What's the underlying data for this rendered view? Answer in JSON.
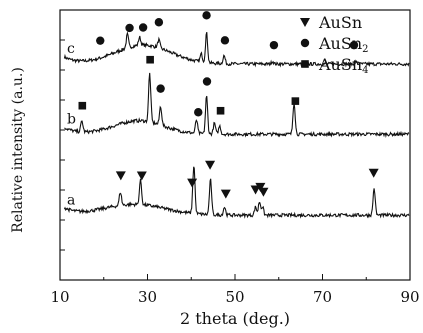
{
  "chart_data": {
    "type": "line",
    "xlabel": "2 theta (deg.)",
    "ylabel": "Relative intensity (a.u.)",
    "xlim": [
      10,
      90
    ],
    "x_ticks": [
      10,
      30,
      50,
      70,
      90
    ],
    "grid": false,
    "legend_position": "top-right",
    "legend": [
      {
        "label": "AuSn",
        "marker": "triangle-down"
      },
      {
        "label": "AuSn2",
        "marker": "circle"
      },
      {
        "label": "AuSn4",
        "marker": "square"
      }
    ],
    "series": [
      {
        "name": "c",
        "base": 0.8,
        "hump": {
          "center": 29,
          "width": 9,
          "height": 0.07
        },
        "peaks": [
          {
            "x": 25.4,
            "h": 0.05
          },
          {
            "x": 28.2,
            "h": 0.03
          },
          {
            "x": 32.6,
            "h": 0.03
          },
          {
            "x": 42.3,
            "h": 0.03
          },
          {
            "x": 43.5,
            "h": 0.11
          },
          {
            "x": 47.5,
            "h": 0.03
          },
          {
            "x": 58.6,
            "h": 0.01
          },
          {
            "x": 77.5,
            "h": 0.01
          }
        ],
        "markers": [
          {
            "x": 19.2,
            "type": "circle"
          },
          {
            "x": 25.9,
            "type": "circle"
          },
          {
            "x": 29.0,
            "type": "circle"
          },
          {
            "x": 32.6,
            "type": "circle"
          },
          {
            "x": 43.5,
            "type": "circle"
          },
          {
            "x": 47.7,
            "type": "circle"
          },
          {
            "x": 58.9,
            "type": "circle"
          },
          {
            "x": 77.2,
            "type": "circle"
          }
        ]
      },
      {
        "name": "b",
        "base": 0.54,
        "hump": {
          "center": 28,
          "width": 8,
          "height": 0.05
        },
        "peaks": [
          {
            "x": 15.0,
            "h": 0.04
          },
          {
            "x": 30.5,
            "h": 0.18
          },
          {
            "x": 33.0,
            "h": 0.07
          },
          {
            "x": 41.2,
            "h": 0.05
          },
          {
            "x": 43.5,
            "h": 0.14
          },
          {
            "x": 45.3,
            "h": 0.04
          },
          {
            "x": 46.5,
            "h": 0.03
          },
          {
            "x": 63.5,
            "h": 0.12
          }
        ],
        "markers": [
          {
            "x": 15.1,
            "type": "square"
          },
          {
            "x": 30.6,
            "type": "square"
          },
          {
            "x": 33.0,
            "type": "circle"
          },
          {
            "x": 41.6,
            "type": "circle"
          },
          {
            "x": 43.6,
            "type": "circle"
          },
          {
            "x": 46.7,
            "type": "square"
          },
          {
            "x": 63.8,
            "type": "square"
          }
        ]
      },
      {
        "name": "a",
        "base": 0.24,
        "hump": {
          "center": 27,
          "width": 10,
          "height": 0.04
        },
        "peaks": [
          {
            "x": 23.8,
            "h": 0.05
          },
          {
            "x": 28.4,
            "h": 0.09
          },
          {
            "x": 40.6,
            "h": 0.18
          },
          {
            "x": 44.4,
            "h": 0.13
          },
          {
            "x": 47.6,
            "h": 0.03
          },
          {
            "x": 54.7,
            "h": 0.03
          },
          {
            "x": 55.6,
            "h": 0.05
          },
          {
            "x": 56.3,
            "h": 0.03
          },
          {
            "x": 81.8,
            "h": 0.1
          }
        ],
        "markers": [
          {
            "x": 23.9,
            "type": "triangle"
          },
          {
            "x": 28.7,
            "type": "triangle"
          },
          {
            "x": 40.2,
            "type": "triangle"
          },
          {
            "x": 44.3,
            "type": "triangle"
          },
          {
            "x": 47.9,
            "type": "triangle"
          },
          {
            "x": 54.7,
            "type": "triangle"
          },
          {
            "x": 55.8,
            "type": "triangle"
          },
          {
            "x": 56.5,
            "type": "triangle"
          },
          {
            "x": 81.7,
            "type": "triangle"
          }
        ]
      }
    ]
  }
}
